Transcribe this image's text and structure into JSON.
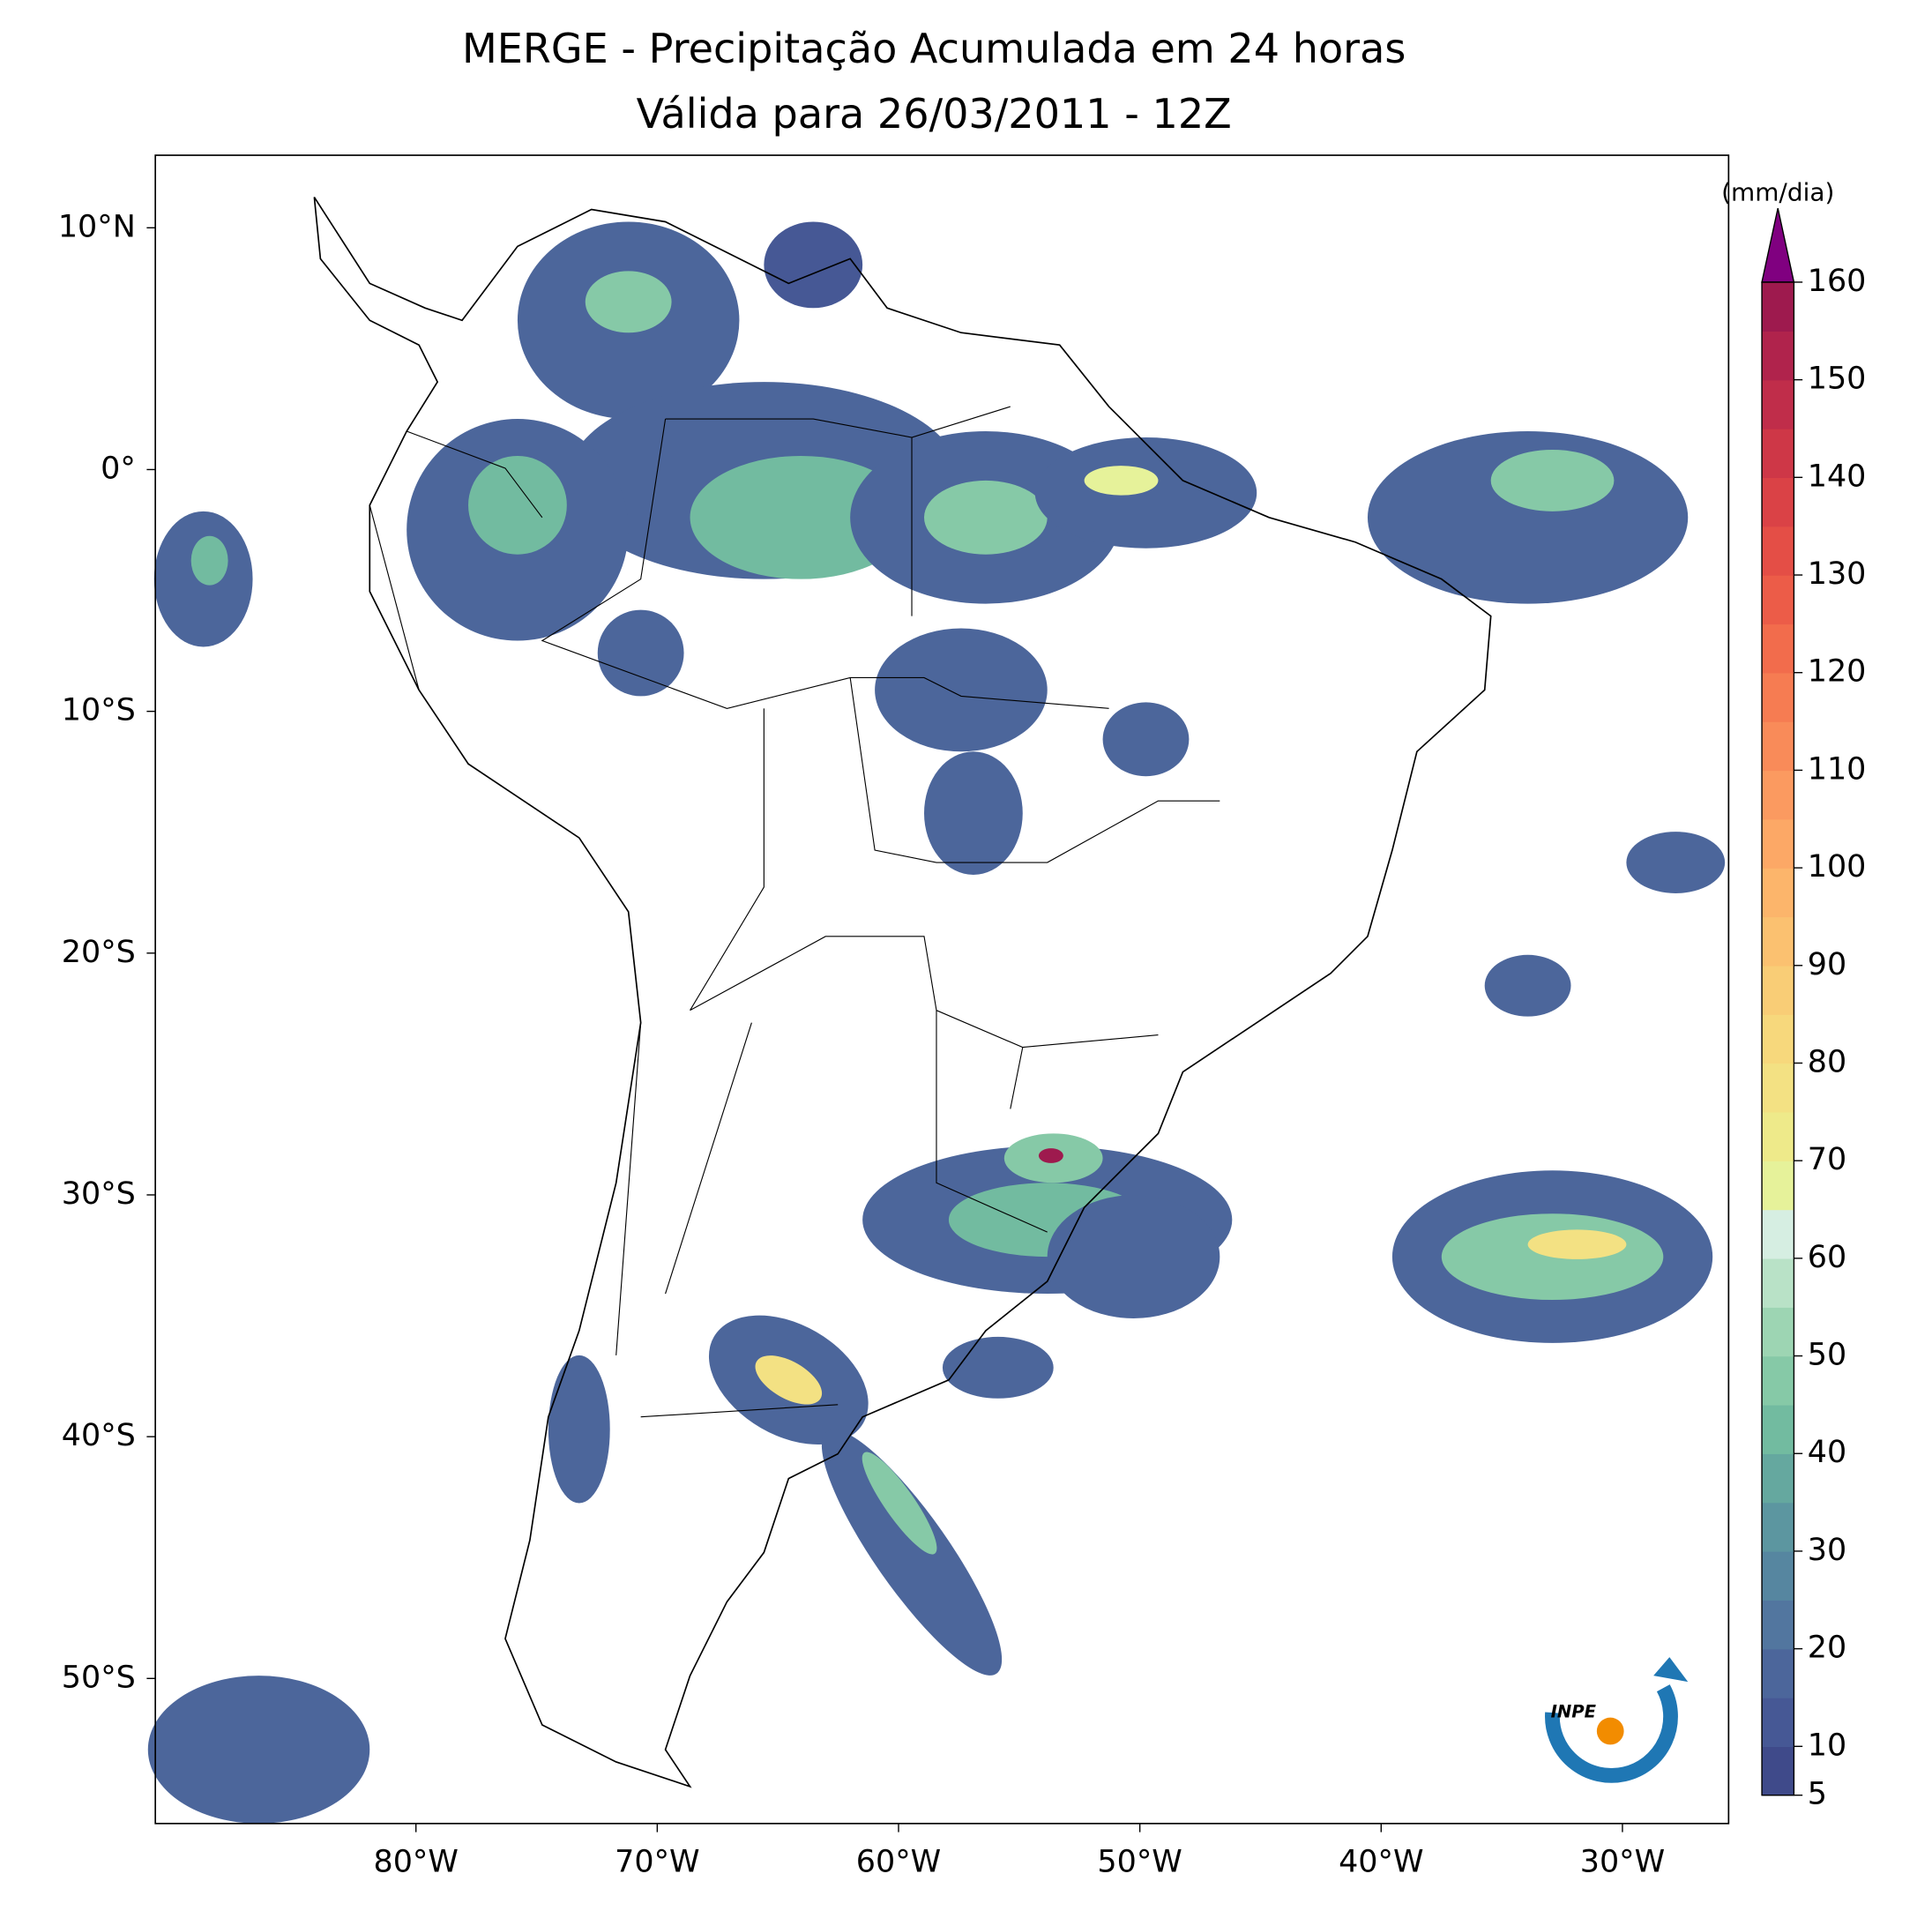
{
  "chart_data": {
    "type": "map",
    "title": [
      "MERGE - Precipitação Acumulada em 24 horas",
      "Válida para 26/03/2011 - 12Z"
    ],
    "xlim": [
      -90.8,
      -25.6
    ],
    "ylim": [
      -56,
      13
    ],
    "xticks": [
      {
        "value": -80,
        "label": "80°W"
      },
      {
        "value": -70,
        "label": "70°W"
      },
      {
        "value": -60,
        "label": "60°W"
      },
      {
        "value": -50,
        "label": "50°W"
      },
      {
        "value": -40,
        "label": "40°W"
      },
      {
        "value": -30,
        "label": "30°W"
      }
    ],
    "yticks": [
      {
        "value": 10,
        "label": "10°N"
      },
      {
        "value": 0,
        "label": "0°"
      },
      {
        "value": -10,
        "label": "10°S"
      },
      {
        "value": -20,
        "label": "20°S"
      },
      {
        "value": -30,
        "label": "30°S"
      },
      {
        "value": -40,
        "label": "40°S"
      },
      {
        "value": -50,
        "label": "50°S"
      }
    ],
    "colorbar": {
      "label": "(mm/dia)",
      "clim": [
        5,
        160
      ],
      "ticks": [
        5,
        10,
        20,
        30,
        40,
        50,
        60,
        70,
        80,
        90,
        100,
        110,
        120,
        130,
        140,
        150,
        160
      ],
      "colors": [
        "#3f4a8a",
        "#465895",
        "#4c669b",
        "#52769f",
        "#5686a0",
        "#5c96a0",
        "#65a89f",
        "#72bba0",
        "#86c9a7",
        "#9dd5b3",
        "#b9e2c7",
        "#d6eee2",
        "#e6f29a",
        "#eeea8a",
        "#f3e183",
        "#f7d87c",
        "#f9cd76",
        "#fbc170",
        "#fcb56b",
        "#fca866",
        "#fb9a60",
        "#f98b59",
        "#f67c52",
        "#f26c4c",
        "#ec5c48",
        "#e44e46",
        "#da4246",
        "#ce3747",
        "#c02d4a",
        "#b0234c",
        "#9e1a4e"
      ],
      "extend_color": "#800080"
    },
    "logo_text": "INPE"
  }
}
